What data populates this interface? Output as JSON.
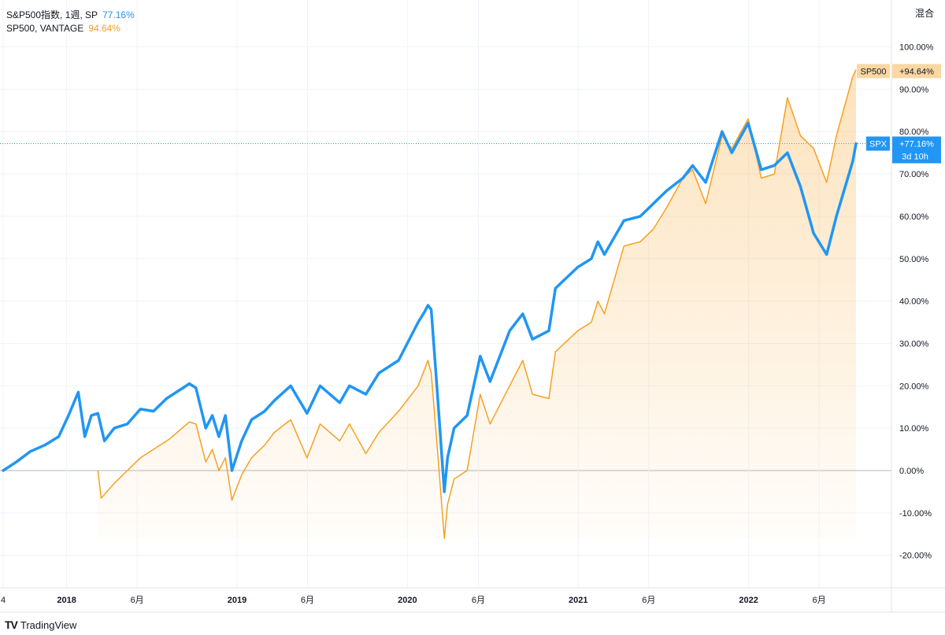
{
  "legend": [
    {
      "title": "S&P500指数, 1週, SP",
      "value": "77.16%",
      "color": "#2196f3"
    },
    {
      "title": "SP500, VANTAGE",
      "value": "94.64%",
      "color": "#f7a021"
    }
  ],
  "axis_title": "混合",
  "last_value_labels": {
    "spx": {
      "name": "SPX",
      "value": "+77.16%",
      "countdown": "3d 10h"
    },
    "sp500": {
      "name": "SP500",
      "value": "+94.64%"
    }
  },
  "branding": {
    "mark": "TV",
    "text": "TradingView"
  },
  "chart_data": {
    "type": "line",
    "y_unit": "%",
    "ylim": [
      -25,
      105
    ],
    "y_ticks": [
      "100.00%",
      "90.00%",
      "80.00%",
      "70.00%",
      "60.00%",
      "50.00%",
      "40.00%",
      "30.00%",
      "20.00%",
      "10.00%",
      "0.00%",
      "-10.00%",
      "-20.00%"
    ],
    "y_tick_values": [
      100,
      90,
      80,
      70,
      60,
      50,
      40,
      30,
      20,
      10,
      0,
      -10,
      -20
    ],
    "xlim": [
      "2017-08-18",
      "2022-08-19"
    ],
    "x_ticks": [
      {
        "label": "4",
        "date": "2017-08-18"
      },
      {
        "label": "2018",
        "date": "2018-01-01"
      },
      {
        "label": "6月",
        "date": "2018-06-01"
      },
      {
        "label": "2019",
        "date": "2019-01-01"
      },
      {
        "label": "6月",
        "date": "2019-06-01"
      },
      {
        "label": "2020",
        "date": "2020-01-01"
      },
      {
        "label": "6月",
        "date": "2020-06-01"
      },
      {
        "label": "2021",
        "date": "2021-01-01"
      },
      {
        "label": "6月",
        "date": "2021-06-01"
      },
      {
        "label": "2022",
        "date": "2022-01-01"
      },
      {
        "label": "6月",
        "date": "2022-06-01"
      }
    ],
    "grid": true,
    "series": [
      {
        "name": "SPX",
        "color": "#2196f3",
        "points": [
          [
            "2017-08-18",
            0
          ],
          [
            "2017-09-15",
            2
          ],
          [
            "2017-10-15",
            4.5
          ],
          [
            "2017-11-15",
            6
          ],
          [
            "2017-12-15",
            8
          ],
          [
            "2018-01-05",
            13
          ],
          [
            "2018-01-26",
            18.5
          ],
          [
            "2018-02-09",
            8
          ],
          [
            "2018-02-23",
            13
          ],
          [
            "2018-03-09",
            13.5
          ],
          [
            "2018-03-23",
            7
          ],
          [
            "2018-04-13",
            10
          ],
          [
            "2018-05-11",
            11
          ],
          [
            "2018-06-08",
            14.5
          ],
          [
            "2018-07-06",
            14
          ],
          [
            "2018-08-03",
            17
          ],
          [
            "2018-09-21",
            20.5
          ],
          [
            "2018-10-05",
            19.5
          ],
          [
            "2018-10-26",
            10
          ],
          [
            "2018-11-09",
            13
          ],
          [
            "2018-11-23",
            8
          ],
          [
            "2018-12-07",
            13
          ],
          [
            "2018-12-21",
            0
          ],
          [
            "2019-01-11",
            7
          ],
          [
            "2019-02-01",
            12
          ],
          [
            "2019-03-01",
            14
          ],
          [
            "2019-03-22",
            16.5
          ],
          [
            "2019-04-26",
            20
          ],
          [
            "2019-05-31",
            13.5
          ],
          [
            "2019-06-28",
            20
          ],
          [
            "2019-08-09",
            16
          ],
          [
            "2019-08-30",
            20
          ],
          [
            "2019-10-04",
            18
          ],
          [
            "2019-11-01",
            23
          ],
          [
            "2019-12-13",
            26
          ],
          [
            "2020-01-24",
            35
          ],
          [
            "2020-02-07",
            37.5
          ],
          [
            "2020-02-14",
            39
          ],
          [
            "2020-02-21",
            38
          ],
          [
            "2020-03-06",
            17
          ],
          [
            "2020-03-20",
            -5
          ],
          [
            "2020-03-27",
            3
          ],
          [
            "2020-04-10",
            10
          ],
          [
            "2020-05-08",
            13
          ],
          [
            "2020-06-05",
            27
          ],
          [
            "2020-06-26",
            21
          ],
          [
            "2020-08-07",
            33
          ],
          [
            "2020-09-04",
            37
          ],
          [
            "2020-09-25",
            31
          ],
          [
            "2020-10-30",
            33
          ],
          [
            "2020-11-13",
            43
          ],
          [
            "2020-12-31",
            48
          ],
          [
            "2021-01-29",
            50
          ],
          [
            "2021-02-12",
            54
          ],
          [
            "2021-02-26",
            51
          ],
          [
            "2021-04-09",
            59
          ],
          [
            "2021-05-14",
            60
          ],
          [
            "2021-06-11",
            63
          ],
          [
            "2021-07-09",
            66
          ],
          [
            "2021-08-13",
            69
          ],
          [
            "2021-09-03",
            72
          ],
          [
            "2021-10-01",
            68
          ],
          [
            "2021-11-05",
            80
          ],
          [
            "2021-11-26",
            75
          ],
          [
            "2021-12-31",
            82
          ],
          [
            "2022-01-28",
            71
          ],
          [
            "2022-02-25",
            72
          ],
          [
            "2022-03-25",
            75
          ],
          [
            "2022-04-22",
            67
          ],
          [
            "2022-05-20",
            56
          ],
          [
            "2022-06-17",
            51
          ],
          [
            "2022-07-08",
            60
          ],
          [
            "2022-08-12",
            73
          ],
          [
            "2022-08-19",
            77.16
          ]
        ]
      },
      {
        "name": "SP500",
        "color": "#f7a021",
        "points": [
          [
            "2018-03-09",
            0
          ],
          [
            "2018-03-16",
            -6.5
          ],
          [
            "2018-04-13",
            -3
          ],
          [
            "2018-05-11",
            0
          ],
          [
            "2018-06-08",
            3
          ],
          [
            "2018-07-06",
            5
          ],
          [
            "2018-08-10",
            7.5
          ],
          [
            "2018-09-21",
            11.5
          ],
          [
            "2018-10-05",
            11
          ],
          [
            "2018-10-26",
            2
          ],
          [
            "2018-11-09",
            5
          ],
          [
            "2018-11-23",
            0
          ],
          [
            "2018-12-07",
            3
          ],
          [
            "2018-12-21",
            -7
          ],
          [
            "2019-01-11",
            -1
          ],
          [
            "2019-02-01",
            3
          ],
          [
            "2019-03-01",
            6
          ],
          [
            "2019-03-22",
            9
          ],
          [
            "2019-04-26",
            12
          ],
          [
            "2019-05-31",
            3
          ],
          [
            "2019-06-28",
            11
          ],
          [
            "2019-08-09",
            7
          ],
          [
            "2019-08-30",
            11
          ],
          [
            "2019-10-04",
            4
          ],
          [
            "2019-11-01",
            9
          ],
          [
            "2019-12-13",
            14
          ],
          [
            "2020-01-24",
            20
          ],
          [
            "2020-02-14",
            26
          ],
          [
            "2020-02-21",
            23
          ],
          [
            "2020-03-06",
            4
          ],
          [
            "2020-03-20",
            -16
          ],
          [
            "2020-03-27",
            -8
          ],
          [
            "2020-04-10",
            -2
          ],
          [
            "2020-05-08",
            0
          ],
          [
            "2020-06-05",
            18
          ],
          [
            "2020-06-26",
            11
          ],
          [
            "2020-08-07",
            20
          ],
          [
            "2020-09-04",
            26
          ],
          [
            "2020-09-25",
            18
          ],
          [
            "2020-10-30",
            17
          ],
          [
            "2020-11-13",
            28
          ],
          [
            "2020-12-31",
            33
          ],
          [
            "2021-01-29",
            35
          ],
          [
            "2021-02-12",
            40
          ],
          [
            "2021-02-26",
            37
          ],
          [
            "2021-04-09",
            53
          ],
          [
            "2021-05-14",
            54
          ],
          [
            "2021-06-11",
            57
          ],
          [
            "2021-07-09",
            62
          ],
          [
            "2021-08-13",
            69
          ],
          [
            "2021-09-03",
            71
          ],
          [
            "2021-10-01",
            63
          ],
          [
            "2021-11-05",
            79
          ],
          [
            "2021-11-26",
            76
          ],
          [
            "2021-12-31",
            83
          ],
          [
            "2022-01-28",
            69
          ],
          [
            "2022-02-25",
            70
          ],
          [
            "2022-03-25",
            88
          ],
          [
            "2022-04-22",
            79
          ],
          [
            "2022-05-20",
            76
          ],
          [
            "2022-06-17",
            68
          ],
          [
            "2022-07-08",
            79
          ],
          [
            "2022-08-12",
            93
          ],
          [
            "2022-08-19",
            94.64
          ]
        ]
      }
    ]
  }
}
